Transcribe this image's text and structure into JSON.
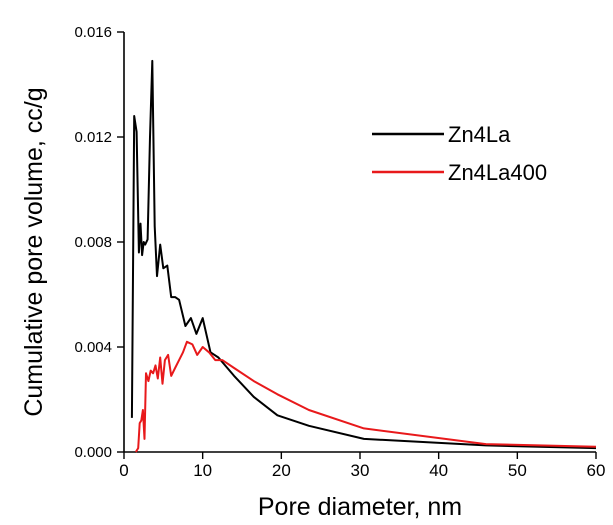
{
  "chart_data": {
    "type": "line",
    "xlabel": "Pore diameter, nm",
    "ylabel": "Cumulative pore volume, cc/g",
    "xlim": [
      0,
      60
    ],
    "ylim": [
      0,
      0.016
    ],
    "xticks": [
      0,
      10,
      20,
      30,
      40,
      50,
      60
    ],
    "xtick_labels": [
      "0",
      "10",
      "20",
      "30",
      "40",
      "50",
      "60"
    ],
    "yticks": [
      0,
      0.004,
      0.008,
      0.012,
      0.016
    ],
    "ytick_labels": [
      "0.000",
      "0.004",
      "0.008",
      "0.012",
      "0.016"
    ],
    "grid": false,
    "legend": "top-right",
    "series": [
      {
        "name": "Zn4La",
        "color": "#000000",
        "x": [
          1.0,
          1.3,
          1.6,
          1.9,
          2.1,
          2.3,
          2.5,
          2.7,
          3.0,
          3.3,
          3.6,
          3.9,
          4.2,
          4.6,
          5.0,
          5.5,
          6.0,
          6.5,
          7.0,
          7.8,
          8.5,
          9.2,
          10.0,
          11.0,
          12.0,
          14.0,
          16.5,
          19.5,
          23.5,
          30.5,
          46.0,
          60.0
        ],
        "y": [
          0.0013,
          0.0128,
          0.0122,
          0.0076,
          0.0087,
          0.0075,
          0.008,
          0.0079,
          0.0081,
          0.012,
          0.0149,
          0.0086,
          0.0067,
          0.0079,
          0.007,
          0.0071,
          0.0059,
          0.0059,
          0.0058,
          0.0048,
          0.0051,
          0.0045,
          0.0051,
          0.0038,
          0.0036,
          0.0029,
          0.0021,
          0.0014,
          0.001,
          0.0005,
          0.00025,
          0.00015
        ]
      },
      {
        "name": "Zn4La400",
        "color": "#e8191b",
        "x": [
          1.5,
          1.8,
          2.0,
          2.2,
          2.4,
          2.6,
          2.8,
          3.1,
          3.4,
          3.7,
          4.0,
          4.3,
          4.6,
          4.9,
          5.2,
          5.6,
          6.0,
          6.5,
          7.0,
          7.5,
          8.0,
          8.7,
          9.3,
          10.0,
          10.8,
          11.6,
          12.5,
          14.0,
          16.5,
          19.5,
          23.5,
          30.5,
          46.0,
          60.0
        ],
        "y": [
          0.0,
          0.00015,
          0.0011,
          0.0012,
          0.0016,
          0.0005,
          0.003,
          0.0027,
          0.0031,
          0.003,
          0.0033,
          0.0028,
          0.0036,
          0.0026,
          0.0035,
          0.0037,
          0.0029,
          0.0032,
          0.0035,
          0.0038,
          0.0042,
          0.0041,
          0.0037,
          0.004,
          0.0038,
          0.0035,
          0.0035,
          0.0032,
          0.0027,
          0.0022,
          0.0016,
          0.0009,
          0.0003,
          0.0002
        ]
      }
    ]
  }
}
